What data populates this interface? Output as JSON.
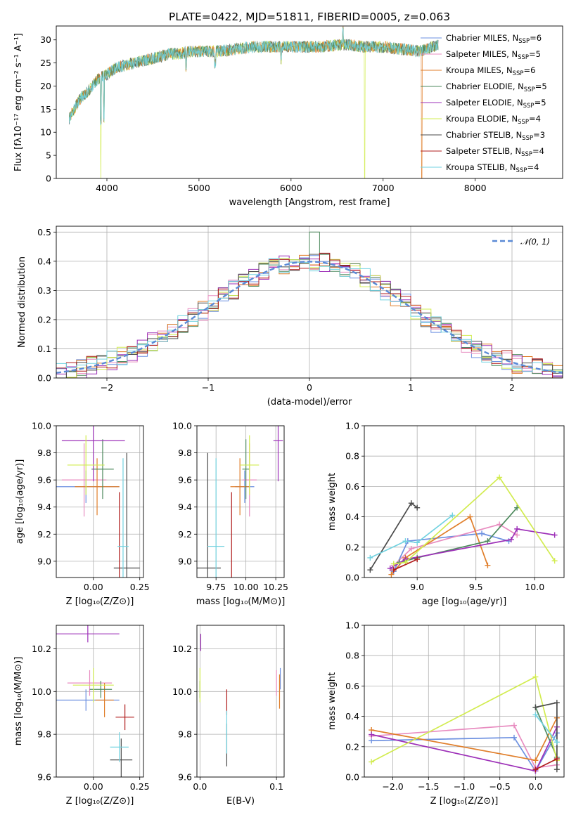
{
  "title": "PLATE=0422, MJD=51811, FIBERID=0005, z=0.063",
  "colors": {
    "Chabrier MILES": "#6b8fe0",
    "Salpeter MILES": "#e88cc0",
    "Kroupa MILES": "#e07e2a",
    "Chabrier ELODIE": "#4e8a5e",
    "Salpeter ELODIE": "#9d30b8",
    "Kroupa ELODIE": "#d2ec50",
    "Chabrier STELIB": "#4a4a4a",
    "Salpeter STELIB": "#b01c1c",
    "Kroupa STELIB": "#72d2e0"
  },
  "chart_data": [
    {
      "id": "spectrum",
      "type": "line",
      "xlabel": "wavelength [Angstrom, rest frame]",
      "ylabel": "Flux [fλ10⁻¹⁷ erg cm⁻² s⁻¹ A⁻¹]",
      "xlim": [
        3450,
        8950
      ],
      "ylim": [
        0,
        33
      ],
      "xticks": [
        4000,
        5000,
        6000,
        7000,
        8000
      ],
      "yticks": [
        0,
        5,
        10,
        15,
        20,
        25,
        30
      ],
      "grid": false,
      "legend_position": "lower-right",
      "legend": [
        {
          "name": "Chabrier MILES",
          "n": "6"
        },
        {
          "name": "Salpeter MILES",
          "n": "5"
        },
        {
          "name": "Kroupa MILES",
          "n": "6"
        },
        {
          "name": "Chabrier ELODIE",
          "n": "5"
        },
        {
          "name": "Salpeter ELODIE",
          "n": "5"
        },
        {
          "name": "Kroupa ELODIE",
          "n": "4"
        },
        {
          "name": "Chabrier STELIB",
          "n": "3"
        },
        {
          "name": "Salpeter STELIB",
          "n": "4"
        },
        {
          "name": "Kroupa STELIB",
          "n": "4"
        }
      ],
      "legend_suffix": "N",
      "legend_sub": "SSP",
      "continuum": {
        "x": [
          3590,
          3700,
          3800,
          3900,
          4000,
          4100,
          4200,
          4300,
          4400,
          4500,
          4600,
          4700,
          4800,
          4900,
          5000,
          5200,
          5400,
          5600,
          5800,
          6000,
          6300,
          6600,
          6800,
          7000,
          7200,
          7400,
          7600
        ],
        "y": [
          13,
          17,
          19,
          21.5,
          22.5,
          24,
          24.5,
          25,
          25.5,
          26,
          26.5,
          27,
          27,
          27.5,
          27.5,
          27.5,
          28,
          28.5,
          28.5,
          28.5,
          28.5,
          29,
          28.5,
          28.5,
          28,
          27.5,
          29
        ]
      }
    },
    {
      "id": "residuals",
      "type": "step",
      "xlabel": "(data-model)/error",
      "ylabel": "Normed distribution",
      "xlim": [
        -2.5,
        2.5
      ],
      "ylim": [
        0,
        0.52
      ],
      "xticks": [
        -2,
        -1,
        0,
        1,
        2
      ],
      "yticks": [
        0.0,
        0.1,
        0.2,
        0.3,
        0.4,
        0.5
      ],
      "grid": true,
      "legend_position": "top-right",
      "legend": "𝒩(0, 1)",
      "bin_width": 0.1,
      "peak_value": 0.5
    },
    {
      "id": "age_vs_Z",
      "type": "scatter",
      "xlabel": "Z [log₁₀(Z/Z⊙)]",
      "ylabel": "age  [log₁₀(age/yr)]",
      "xlim": [
        -0.2,
        0.27
      ],
      "ylim": [
        8.88,
        10.0
      ],
      "xticks": [
        -0.0,
        0.25
      ],
      "xticklabels": [
        "0.00",
        "0.25"
      ],
      "yticks": [
        9.0,
        9.2,
        9.4,
        9.6,
        9.8,
        10.0
      ],
      "grid": true,
      "points": [
        {
          "model": "Chabrier MILES",
          "x": -0.04,
          "xerr": 0.18,
          "y": 9.55,
          "yerr": 0.12
        },
        {
          "model": "Salpeter MILES",
          "x": -0.05,
          "xerr": 0.12,
          "y": 9.6,
          "yerr": 0.27
        },
        {
          "model": "Kroupa MILES",
          "x": 0.02,
          "xerr": 0.12,
          "y": 9.55,
          "yerr": 0.21
        },
        {
          "model": "Chabrier ELODIE",
          "x": 0.05,
          "xerr": 0.06,
          "y": 9.68,
          "yerr": 0.22
        },
        {
          "model": "Salpeter ELODIE",
          "x": 0.0,
          "xerr": 0.17,
          "y": 9.89,
          "yerr": 0.3
        },
        {
          "model": "Kroupa ELODIE",
          "x": -0.04,
          "xerr": 0.1,
          "y": 9.71,
          "yerr": 0.22
        },
        {
          "model": "Chabrier STELIB",
          "x": 0.18,
          "xerr": 0.07,
          "y": 8.95,
          "yerr": 0.85
        },
        {
          "model": "Salpeter STELIB",
          "x": 0.14,
          "xerr": 0.0,
          "y": 9.11,
          "yerr": 0.4
        },
        {
          "model": "Kroupa STELIB",
          "x": 0.16,
          "xerr": 0.03,
          "y": 9.11,
          "yerr": 0.65
        }
      ]
    },
    {
      "id": "age_vs_mass",
      "type": "scatter",
      "xlabel": "mass [log₁₀(M/M⊙)]",
      "ylabel": "",
      "xlim": [
        9.59,
        10.32
      ],
      "ylim": [
        8.88,
        10.0
      ],
      "xticks": [
        9.75,
        10.0,
        10.25
      ],
      "xticklabels": [
        "9.75",
        "10.00",
        "10.25"
      ],
      "yticks": [
        9.0,
        9.2,
        9.4,
        9.6,
        9.8,
        10.0
      ],
      "grid": true,
      "points": [
        {
          "model": "Chabrier MILES",
          "x": 9.99,
          "xerr": 0.08,
          "y": 9.55,
          "yerr": 0.12
        },
        {
          "model": "Salpeter MILES",
          "x": 10.03,
          "xerr": 0.06,
          "y": 9.6,
          "yerr": 0.27
        },
        {
          "model": "Kroupa MILES",
          "x": 9.95,
          "xerr": 0.08,
          "y": 9.55,
          "yerr": 0.21
        },
        {
          "model": "Chabrier ELODIE",
          "x": 10.0,
          "xerr": 0.03,
          "y": 9.68,
          "yerr": 0.22
        },
        {
          "model": "Salpeter ELODIE",
          "x": 10.27,
          "xerr": 0.04,
          "y": 9.89,
          "yerr": 0.3
        },
        {
          "model": "Kroupa ELODIE",
          "x": 10.03,
          "xerr": 0.08,
          "y": 9.71,
          "yerr": 0.22
        },
        {
          "model": "Chabrier STELIB",
          "x": 9.68,
          "xerr": 0.11,
          "y": 8.95,
          "yerr": 0.85
        },
        {
          "model": "Salpeter STELIB",
          "x": 9.88,
          "xerr": 0.0,
          "y": 9.11,
          "yerr": 0.4
        },
        {
          "model": "Kroupa STELIB",
          "x": 9.75,
          "xerr": 0.07,
          "y": 9.11,
          "yerr": 0.65
        }
      ]
    },
    {
      "id": "weight_vs_age",
      "type": "line",
      "xlabel": "age  [log₁₀(age/yr)]",
      "ylabel": "mass weight",
      "xlim": [
        8.55,
        10.25
      ],
      "ylim": [
        0,
        1
      ],
      "xticks": [
        9.0,
        9.5,
        10.0
      ],
      "xticklabels": [
        "9.0",
        "9.5",
        "10.0"
      ],
      "yticks": [
        0.0,
        0.2,
        0.4,
        0.6,
        0.8,
        1.0
      ],
      "grid": true,
      "series": [
        {
          "model": "Chabrier MILES",
          "x": [
            8.8,
            8.92,
            9.55,
            9.78
          ],
          "y": [
            0.04,
            0.24,
            0.29,
            0.24
          ]
        },
        {
          "model": "Salpeter MILES",
          "x": [
            8.8,
            8.95,
            9.7,
            9.85
          ],
          "y": [
            0.08,
            0.19,
            0.35,
            0.28
          ]
        },
        {
          "model": "Kroupa MILES",
          "x": [
            8.78,
            8.9,
            9.45,
            9.6
          ],
          "y": [
            0.02,
            0.13,
            0.4,
            0.08
          ]
        },
        {
          "model": "Chabrier ELODIE",
          "x": [
            8.85,
            9.0,
            9.6,
            9.85
          ],
          "y": [
            0.1,
            0.13,
            0.24,
            0.46
          ]
        },
        {
          "model": "Salpeter ELODIE",
          "x": [
            8.77,
            8.9,
            9.8,
            9.85,
            10.17
          ],
          "y": [
            0.06,
            0.12,
            0.25,
            0.32,
            0.28
          ]
        },
        {
          "model": "Kroupa ELODIE",
          "x": [
            8.8,
            8.9,
            9.7,
            10.17
          ],
          "y": [
            0.09,
            0.1,
            0.66,
            0.11
          ]
        },
        {
          "model": "Chabrier STELIB",
          "x": [
            8.6,
            8.95,
            9.0
          ],
          "y": [
            0.05,
            0.49,
            0.46
          ]
        },
        {
          "model": "Salpeter STELIB",
          "x": [
            8.8,
            9.0
          ],
          "y": [
            0.05,
            0.12
          ]
        },
        {
          "model": "Kroupa STELIB",
          "x": [
            8.6,
            8.9,
            9.0,
            9.3
          ],
          "y": [
            0.13,
            0.24,
            0.23,
            0.41
          ]
        }
      ]
    },
    {
      "id": "mass_vs_Z",
      "type": "scatter",
      "xlabel": "Z [log₁₀(Z/Z⊙)]",
      "ylabel": "mass [log₁₀(M/M⊙)]",
      "xlim": [
        -0.2,
        0.27
      ],
      "ylim": [
        9.6,
        10.31
      ],
      "xticks": [
        0.0,
        0.25
      ],
      "xticklabels": [
        "0.00",
        "0.25"
      ],
      "yticks": [
        9.6,
        9.8,
        10.0,
        10.2
      ],
      "grid": true,
      "points": [
        {
          "model": "Chabrier MILES",
          "x": -0.04,
          "xerr": 0.18,
          "y": 9.96,
          "yerr": 0.05
        },
        {
          "model": "Salpeter MILES",
          "x": -0.02,
          "xerr": 0.12,
          "y": 10.04,
          "yerr": 0.06
        },
        {
          "model": "Kroupa MILES",
          "x": 0.06,
          "xerr": 0.05,
          "y": 9.96,
          "yerr": 0.08
        },
        {
          "model": "Chabrier ELODIE",
          "x": 0.04,
          "xerr": 0.06,
          "y": 10.01,
          "yerr": 0.04
        },
        {
          "model": "Salpeter ELODIE",
          "x": -0.03,
          "xerr": 0.17,
          "y": 10.27,
          "yerr": 0.04
        },
        {
          "model": "Kroupa ELODIE",
          "x": 0.0,
          "xerr": 0.11,
          "y": 10.03,
          "yerr": 0.08
        },
        {
          "model": "Chabrier STELIB",
          "x": 0.15,
          "xerr": 0.06,
          "y": 9.68,
          "yerr": 0.1
        },
        {
          "model": "Salpeter STELIB",
          "x": 0.17,
          "xerr": 0.05,
          "y": 9.88,
          "yerr": 0.06
        },
        {
          "model": "Kroupa STELIB",
          "x": 0.14,
          "xerr": 0.05,
          "y": 9.74,
          "yerr": 0.07
        }
      ]
    },
    {
      "id": "mass_vs_EBV",
      "type": "scatter",
      "xlabel": "E(B-V)",
      "ylabel": "",
      "xlim": [
        -0.004,
        0.11
      ],
      "ylim": [
        9.6,
        10.31
      ],
      "xticks": [
        0.0,
        0.1
      ],
      "xticklabels": [
        "0.0",
        "0.1"
      ],
      "yticks": [
        9.6,
        9.8,
        10.0,
        10.2
      ],
      "grid": true,
      "points": [
        {
          "model": "Chabrier MILES",
          "x": 0.105,
          "xerr": 0,
          "y": 10.06,
          "yerr": 0.05
        },
        {
          "model": "Salpeter MILES",
          "x": 0.1,
          "xerr": 0,
          "y": 10.04,
          "yerr": 0.06
        },
        {
          "model": "Kroupa MILES",
          "x": 0.104,
          "xerr": 0,
          "y": 10.0,
          "yerr": 0.08
        },
        {
          "model": "Chabrier ELODIE",
          "x": 0.0,
          "xerr": 0,
          "y": 10.01,
          "yerr": 0.04
        },
        {
          "model": "Salpeter ELODIE",
          "x": 0.001,
          "xerr": 0,
          "y": 10.23,
          "yerr": 0.04
        },
        {
          "model": "Kroupa ELODIE",
          "x": 0.0,
          "xerr": 0,
          "y": 10.03,
          "yerr": 0.08
        },
        {
          "model": "Chabrier STELIB",
          "x": 0.035,
          "xerr": 0,
          "y": 9.75,
          "yerr": 0.1
        },
        {
          "model": "Salpeter STELIB",
          "x": 0.035,
          "xerr": 0,
          "y": 9.95,
          "yerr": 0.06
        },
        {
          "model": "Kroupa STELIB",
          "x": 0.035,
          "xerr": 0,
          "y": 9.81,
          "yerr": 0.1
        }
      ]
    },
    {
      "id": "weight_vs_Z",
      "type": "line",
      "xlabel": "Z [log₁₀(Z/Z⊙)]",
      "ylabel": "mass weight",
      "xlim": [
        -2.4,
        0.4
      ],
      "ylim": [
        0,
        1
      ],
      "xticks": [
        -2.0,
        -1.5,
        -1.0,
        -0.5,
        0.0
      ],
      "xticklabels": [
        "−2.0",
        "−1.5",
        "−1.0",
        "−0.5",
        "0.0"
      ],
      "yticks": [
        0.0,
        0.2,
        0.4,
        0.6,
        0.8,
        1.0
      ],
      "grid": true,
      "series": [
        {
          "model": "Chabrier MILES",
          "x": [
            -2.3,
            -0.3,
            0.0,
            0.3
          ],
          "y": [
            0.24,
            0.26,
            0.04,
            0.29
          ]
        },
        {
          "model": "Salpeter MILES",
          "x": [
            -2.3,
            -0.3,
            0.0,
            0.3
          ],
          "y": [
            0.27,
            0.34,
            0.06,
            0.08
          ]
        },
        {
          "model": "Kroupa MILES",
          "x": [
            -2.3,
            0.0,
            0.3
          ],
          "y": [
            0.31,
            0.11,
            0.39
          ]
        },
        {
          "model": "Chabrier ELODIE",
          "x": [
            0.0,
            0.3
          ],
          "y": [
            0.46,
            0.13
          ]
        },
        {
          "model": "Salpeter ELODIE",
          "x": [
            -2.3,
            0.0,
            0.3
          ],
          "y": [
            0.28,
            0.04,
            0.33
          ]
        },
        {
          "model": "Kroupa ELODIE",
          "x": [
            -2.3,
            0.0,
            0.3
          ],
          "y": [
            0.1,
            0.66,
            0.11
          ]
        },
        {
          "model": "Chabrier STELIB",
          "x": [
            0.0,
            0.3,
            0.3
          ],
          "y": [
            0.46,
            0.49,
            0.05
          ]
        },
        {
          "model": "Salpeter STELIB",
          "x": [
            0.0,
            0.3
          ],
          "y": [
            0.05,
            0.12
          ]
        },
        {
          "model": "Kroupa STELIB",
          "x": [
            0.0,
            0.3
          ],
          "y": [
            0.41,
            0.23
          ]
        }
      ]
    }
  ]
}
